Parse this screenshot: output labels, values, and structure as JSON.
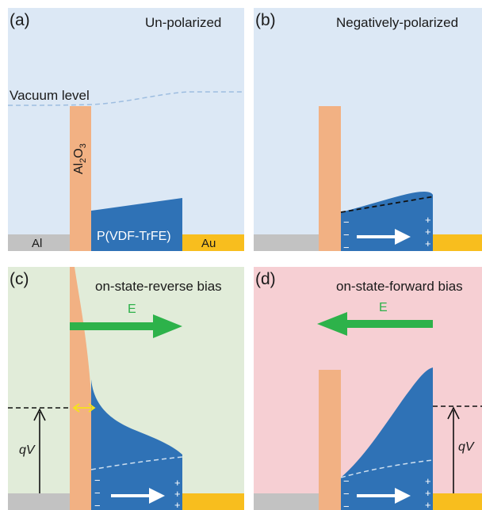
{
  "panels": {
    "a": {
      "label": "(a)",
      "title": "Un-polarized",
      "vacuum_label": "Vacuum level",
      "oxide_base": "Al",
      "oxide_sub1": "2",
      "oxide_mid": "O",
      "oxide_sub2": "3",
      "left_electrode": "Al",
      "ferroelectric": "P(VDF-TrFE)",
      "right_electrode": "Au"
    },
    "b": {
      "label": "(b)",
      "title": "Negatively-polarized"
    },
    "c": {
      "label": "(c)",
      "title": "on-state-reverse  bias",
      "field_label": "E",
      "qv_label": "qV"
    },
    "d": {
      "label": "(d)",
      "title": "on-state-forward  bias",
      "field_label": "E",
      "qv_label": "qV"
    }
  },
  "signs": {
    "minus": "−",
    "plus": "+"
  },
  "colors": {
    "vacuum_bg": "#dce8f5",
    "reverse_bg": "#e1ecd9",
    "forward_bg": "#f6cfd3",
    "oxide": "#f2b183",
    "ferroelectric": "#2f72b6",
    "al_electrode": "#c2c2c2",
    "au_electrode": "#f8be1e",
    "field_arrow": "#2db24a",
    "vacuum_line": "#9dbde0",
    "width_arrow": "#f6e21a"
  }
}
